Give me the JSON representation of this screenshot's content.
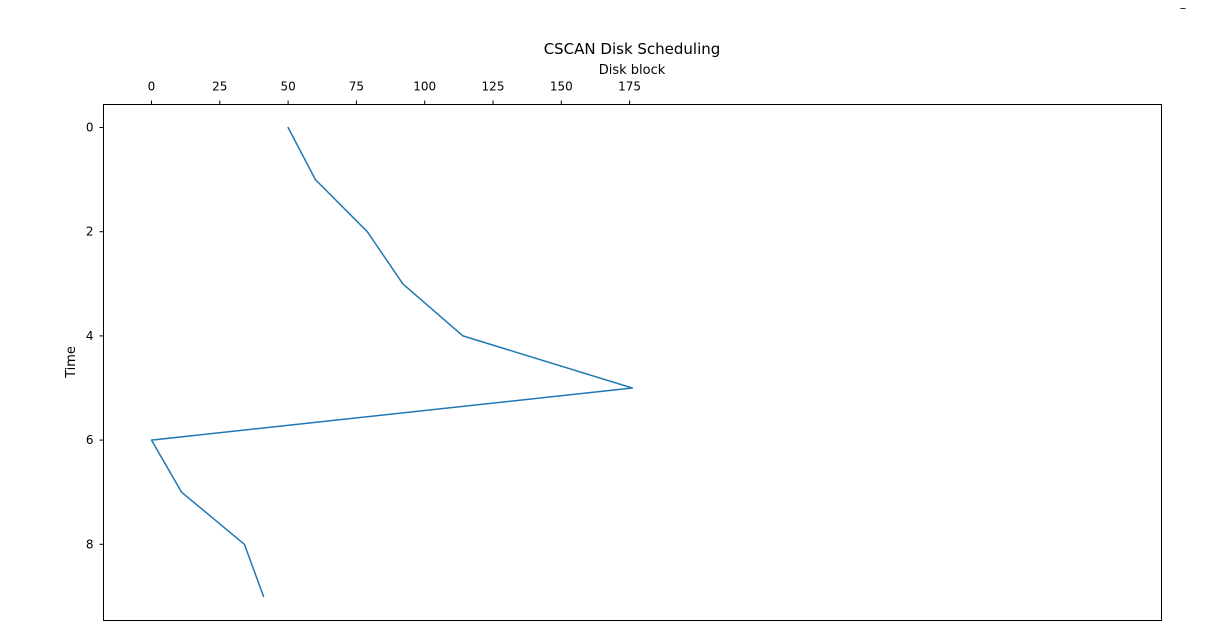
{
  "window": {
    "minimize_label": "–"
  },
  "chart_data": {
    "type": "line",
    "title": "CSCAN Disk Scheduling",
    "xlabel": "Disk block",
    "ylabel": "Time",
    "x_axis_position": "top",
    "y_axis_inverted": true,
    "xlim": [
      -17.5,
      370
    ],
    "ylim": [
      9.45,
      -0.45
    ],
    "x_ticks": [
      0,
      25,
      50,
      75,
      100,
      125,
      150,
      175
    ],
    "y_ticks": [
      0,
      2,
      4,
      6,
      8
    ],
    "grid": false,
    "series": [
      {
        "color": "#1f77b4",
        "x": [
          50,
          60,
          79,
          92,
          114,
          176,
          0,
          11,
          34,
          41
        ],
        "y": [
          0,
          1,
          2,
          3,
          4,
          5,
          6,
          7,
          8,
          9
        ]
      }
    ]
  }
}
